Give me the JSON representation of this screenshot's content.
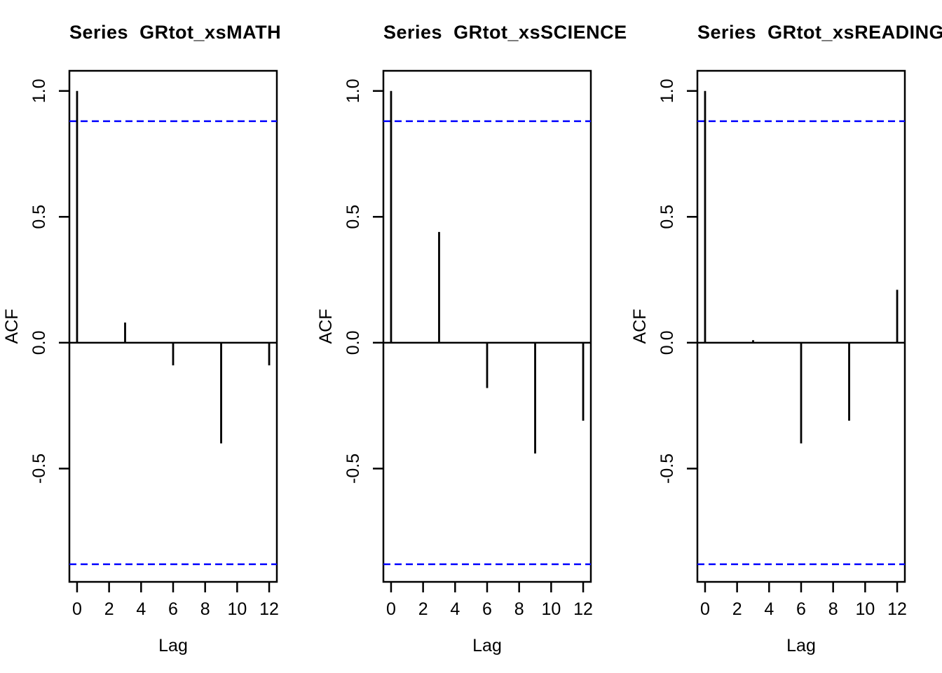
{
  "figure": {
    "background": "#ffffff",
    "panel_count": 3
  },
  "colors": {
    "axis": "#000000",
    "spike": "#000000",
    "conf_band": "#0000ff",
    "text": "#000000",
    "background": "#ffffff"
  },
  "chart_data": [
    {
      "type": "bar",
      "subtype": "acf-stick-plot",
      "title": "Series  GRtot_xsMATH",
      "xlabel": "Lag",
      "ylabel": "ACF",
      "x": [
        0,
        1,
        2,
        3,
        4,
        5,
        6,
        7,
        8,
        9,
        10,
        11,
        12
      ],
      "values": [
        1.0,
        0,
        0,
        0.08,
        0,
        0,
        -0.09,
        0,
        0,
        -0.4,
        0,
        0,
        -0.09
      ],
      "conf_band_upper": 0.88,
      "conf_band_lower": -0.88,
      "conf_band_style": "dashed",
      "xlim": [
        -0.48,
        12.48
      ],
      "ylim": [
        -0.95,
        1.08
      ],
      "xtick_values": [
        0,
        2,
        4,
        6,
        8,
        10,
        12
      ],
      "xtick_labels": [
        "0",
        "2",
        "4",
        "6",
        "8",
        "10",
        "12"
      ],
      "ytick_values": [
        -0.5,
        0.0,
        0.5,
        1.0
      ],
      "ytick_labels": [
        "-0.5",
        "0.0",
        "0.5",
        "1.0"
      ],
      "grid": false,
      "legend": null
    },
    {
      "type": "bar",
      "subtype": "acf-stick-plot",
      "title": "Series  GRtot_xsSCIENCE",
      "xlabel": "Lag",
      "ylabel": "ACF",
      "x": [
        0,
        1,
        2,
        3,
        4,
        5,
        6,
        7,
        8,
        9,
        10,
        11,
        12
      ],
      "values": [
        1.0,
        0,
        0,
        0.44,
        0,
        0,
        -0.18,
        0,
        0,
        -0.44,
        0,
        0,
        -0.31
      ],
      "conf_band_upper": 0.88,
      "conf_band_lower": -0.88,
      "conf_band_style": "dashed",
      "xlim": [
        -0.48,
        12.48
      ],
      "ylim": [
        -0.95,
        1.08
      ],
      "xtick_values": [
        0,
        2,
        4,
        6,
        8,
        10,
        12
      ],
      "xtick_labels": [
        "0",
        "2",
        "4",
        "6",
        "8",
        "10",
        "12"
      ],
      "ytick_values": [
        -0.5,
        0.0,
        0.5,
        1.0
      ],
      "ytick_labels": [
        "-0.5",
        "0.0",
        "0.5",
        "1.0"
      ],
      "grid": false,
      "legend": null
    },
    {
      "type": "bar",
      "subtype": "acf-stick-plot",
      "title": "Series  GRtot_xsREADING",
      "xlabel": "Lag",
      "ylabel": "ACF",
      "x": [
        0,
        1,
        2,
        3,
        4,
        5,
        6,
        7,
        8,
        9,
        10,
        11,
        12
      ],
      "values": [
        1.0,
        0,
        0,
        0.01,
        0,
        0,
        -0.4,
        0,
        0,
        -0.31,
        0,
        0,
        0.21
      ],
      "conf_band_upper": 0.88,
      "conf_band_lower": -0.88,
      "conf_band_style": "dashed",
      "xlim": [
        -0.48,
        12.48
      ],
      "ylim": [
        -0.95,
        1.08
      ],
      "xtick_values": [
        0,
        2,
        4,
        6,
        8,
        10,
        12
      ],
      "xtick_labels": [
        "0",
        "2",
        "4",
        "6",
        "8",
        "10",
        "12"
      ],
      "ytick_values": [
        -0.5,
        0.0,
        0.5,
        1.0
      ],
      "ytick_labels": [
        "-0.5",
        "0.0",
        "0.5",
        "1.0"
      ],
      "grid": false,
      "legend": null
    }
  ]
}
